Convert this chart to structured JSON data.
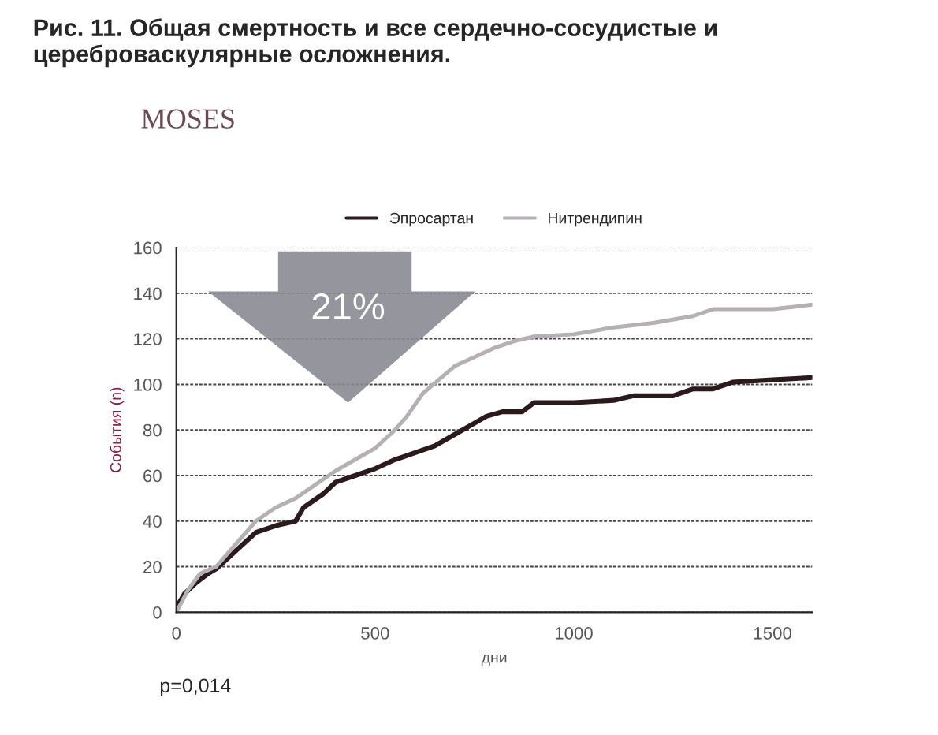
{
  "chart_data": {
    "type": "line",
    "title": "Рис. 11. Общая смертность и все сердечно-сосудистые и цереброваскулярные осложнения.",
    "subtitle": "MOSES",
    "xlabel": "дни",
    "ylabel": "События (n)",
    "xlim": [
      0,
      1600
    ],
    "ylim": [
      0,
      160
    ],
    "xticks": [
      0,
      500,
      1000,
      1500
    ],
    "yticks": [
      0,
      20,
      40,
      60,
      80,
      100,
      120,
      140,
      160
    ],
    "grid": "y",
    "legend": "top",
    "marker": "none",
    "line_style": "solid",
    "annotations": [
      "21%",
      "p=0,014"
    ],
    "series": [
      {
        "name": "Эпросартан",
        "color": "#2a1a1e",
        "x": [
          0,
          20,
          50,
          80,
          100,
          150,
          200,
          250,
          300,
          320,
          370,
          400,
          450,
          500,
          550,
          600,
          650,
          700,
          750,
          780,
          820,
          870,
          900,
          1000,
          1100,
          1150,
          1250,
          1300,
          1350,
          1400,
          1500,
          1600
        ],
        "values": [
          2,
          8,
          13,
          17,
          19,
          27,
          35,
          38,
          40,
          46,
          52,
          57,
          60,
          63,
          67,
          70,
          73,
          78,
          83,
          86,
          88,
          88,
          92,
          92,
          93,
          95,
          95,
          98,
          98,
          101,
          102,
          103
        ]
      },
      {
        "name": "Нитрендипин",
        "color": "#b4b0b4",
        "x": [
          0,
          30,
          60,
          100,
          150,
          200,
          250,
          300,
          350,
          400,
          450,
          500,
          550,
          580,
          620,
          660,
          700,
          750,
          800,
          850,
          900,
          1000,
          1100,
          1200,
          1300,
          1350,
          1450,
          1500,
          1550,
          1600
        ],
        "values": [
          0,
          10,
          17,
          20,
          30,
          40,
          46,
          50,
          56,
          62,
          67,
          72,
          80,
          86,
          96,
          102,
          108,
          112,
          116,
          119,
          121,
          122,
          125,
          127,
          130,
          133,
          133,
          133,
          134,
          135
        ]
      }
    ]
  }
}
